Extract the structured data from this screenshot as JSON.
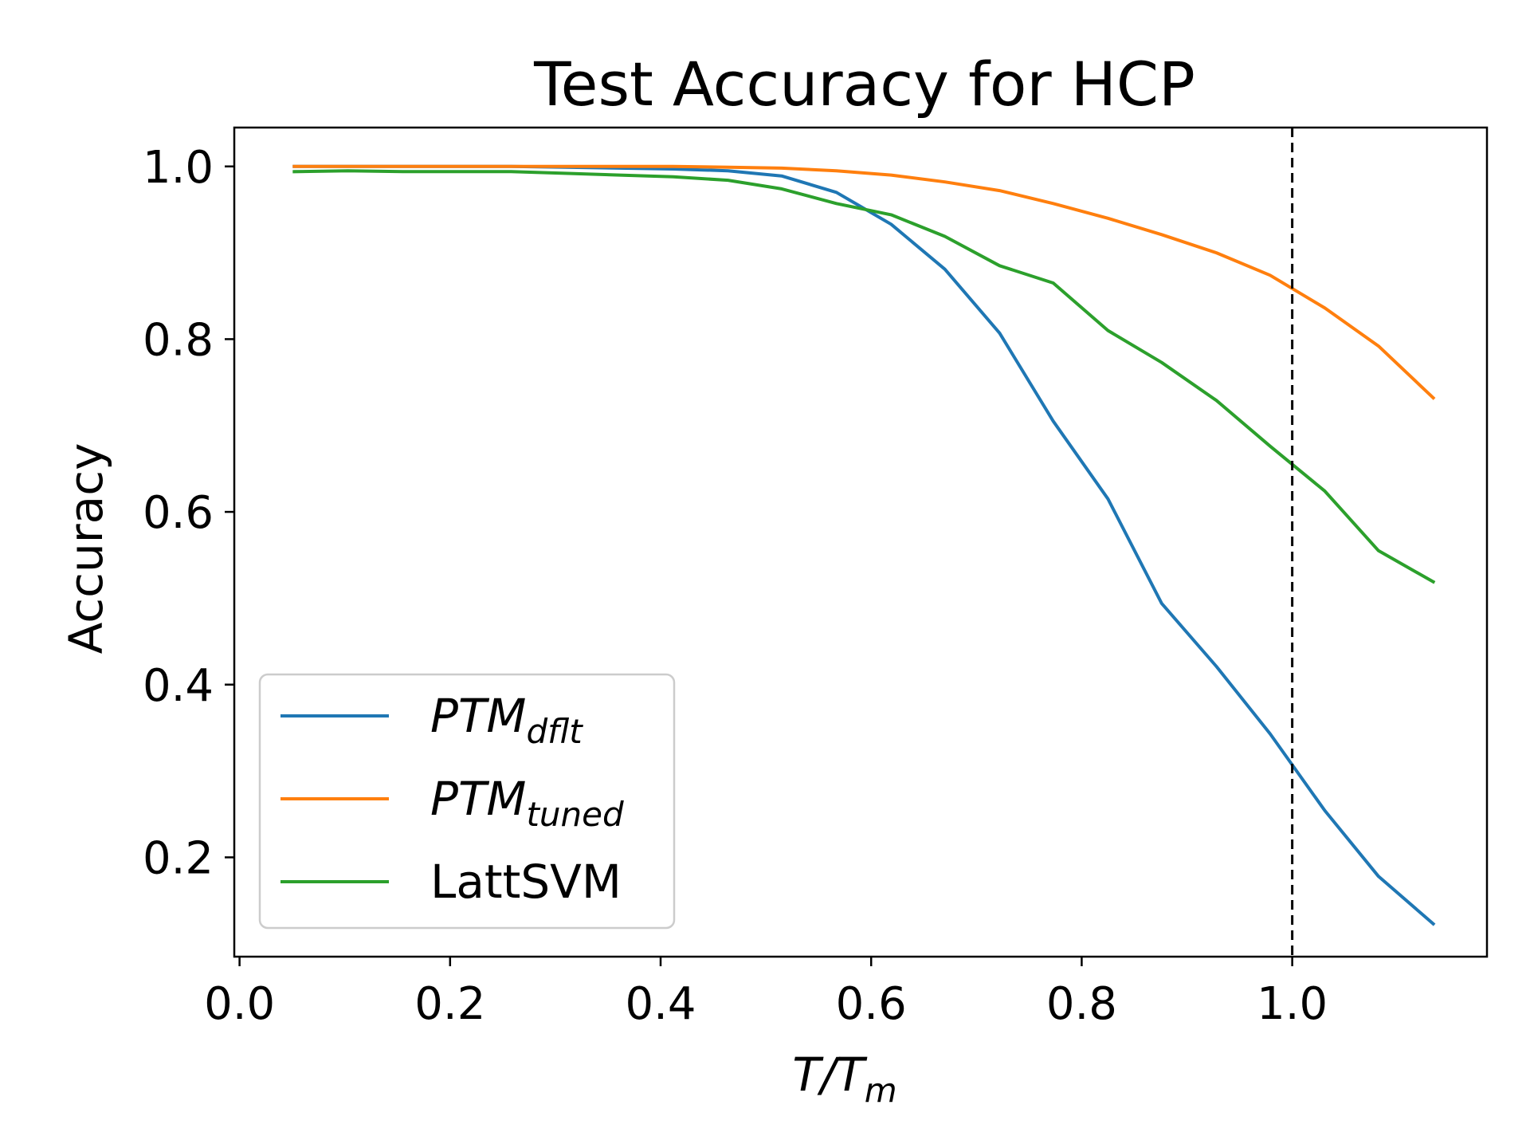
{
  "chart_data": {
    "type": "line",
    "title": "Test Accuracy for HCP",
    "xlabel": "T/T",
    "xlabel_sub": "m",
    "ylabel": "Accuracy",
    "xlim": [
      -0.005,
      1.185
    ],
    "ylim": [
      0.085,
      1.045
    ],
    "xticks": [
      0.0,
      0.2,
      0.4,
      0.6,
      0.8,
      1.0
    ],
    "xtick_labels": [
      "0.0",
      "0.2",
      "0.4",
      "0.6",
      "0.8",
      "1.0"
    ],
    "yticks": [
      0.2,
      0.4,
      0.6,
      0.8,
      1.0
    ],
    "ytick_labels": [
      "0.2",
      "0.4",
      "0.6",
      "0.8",
      "1.0"
    ],
    "grid": false,
    "legend_position": "lower-left",
    "reference_line": {
      "x": 1.0,
      "style": "dashed",
      "color": "#000000"
    },
    "x": [
      0.052,
      0.103,
      0.155,
      0.206,
      0.258,
      0.309,
      0.361,
      0.412,
      0.464,
      0.515,
      0.567,
      0.619,
      0.67,
      0.722,
      0.773,
      0.825,
      0.876,
      0.928,
      0.979,
      1.031,
      1.082,
      1.134
    ],
    "series": [
      {
        "name": "PTM",
        "name_sub": "dflt",
        "color": "#1f77b4",
        "values": [
          1.0,
          1.0,
          1.0,
          1.0,
          1.0,
          0.999,
          0.998,
          0.997,
          0.995,
          0.989,
          0.97,
          0.933,
          0.881,
          0.807,
          0.705,
          0.615,
          0.494,
          0.421,
          0.343,
          0.254,
          0.178,
          0.123
        ]
      },
      {
        "name": "PTM",
        "name_sub": "tuned",
        "color": "#ff7f0e",
        "values": [
          1.0,
          1.0,
          1.0,
          1.0,
          1.0,
          1.0,
          1.0,
          1.0,
          0.999,
          0.998,
          0.995,
          0.99,
          0.982,
          0.972,
          0.957,
          0.94,
          0.921,
          0.9,
          0.874,
          0.836,
          0.792,
          0.732
        ]
      },
      {
        "name": "LattSVM",
        "color": "#2ca02c",
        "values": [
          0.994,
          0.995,
          0.994,
          0.994,
          0.994,
          0.992,
          0.99,
          0.988,
          0.984,
          0.974,
          0.957,
          0.944,
          0.919,
          0.885,
          0.865,
          0.81,
          0.773,
          0.729,
          0.676,
          0.624,
          0.555,
          0.519
        ]
      }
    ]
  }
}
